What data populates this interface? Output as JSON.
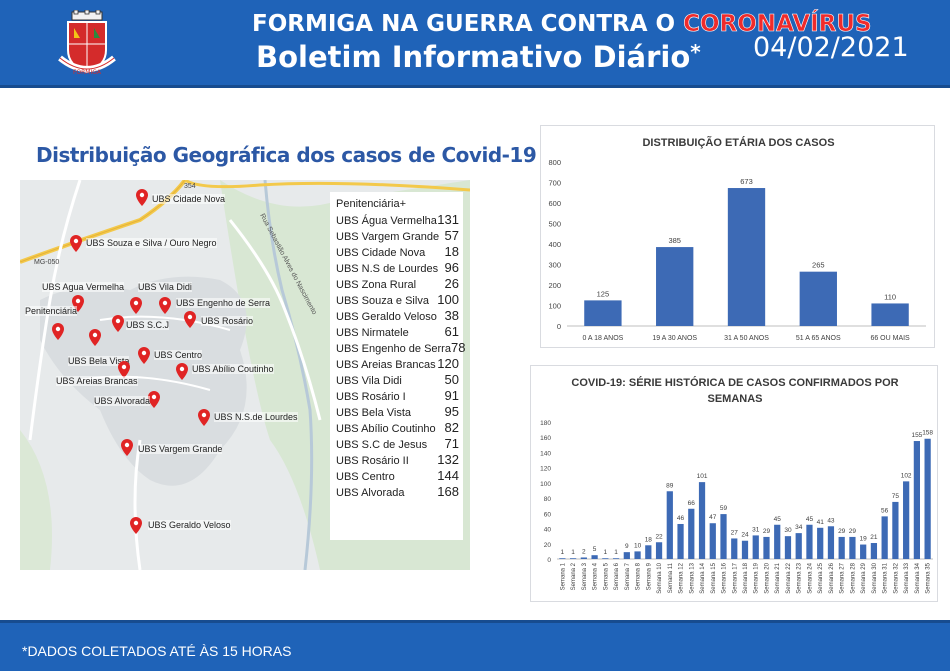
{
  "header": {
    "title_prefix": "FORMIGA NA GUERRA CONTRA O ",
    "title_highlight": "CORONAVÍRUS",
    "subtitle": "Boletim Informativo Diário",
    "subtitle_mark": "*",
    "date": "04/02/2021",
    "crest_text": "FORMIGA"
  },
  "geo": {
    "title": "Distribuição Geográfica dos casos de Covid-19",
    "road_labels": [
      "MG-050",
      "354",
      "Rua Sebastião Alves do Nascimento"
    ],
    "markers": [
      {
        "label": "UBS Cidade Nova"
      },
      {
        "label": "UBS Souza e Silva / Ouro Negro"
      },
      {
        "label": "UBS Agua Vermelha"
      },
      {
        "label": "UBS Vila Didi"
      },
      {
        "label": "UBS Engenho de Serra"
      },
      {
        "label": "Penitenciária"
      },
      {
        "label": "UBS S.C.J"
      },
      {
        "label": "UBS Rosário"
      },
      {
        "label": "UBS Centro"
      },
      {
        "label": "UBS Bela Vista"
      },
      {
        "label": "UBS Abílio Coutinho"
      },
      {
        "label": "UBS Areias Brancas"
      },
      {
        "label": "UBS Alvorada"
      },
      {
        "label": "UBS N.S.de Lourdes"
      },
      {
        "label": "UBS Vargem Grande"
      },
      {
        "label": "UBS Geraldo Veloso"
      }
    ],
    "list_header": "Penitenciária+",
    "list": [
      {
        "name": "UBS Água Vermelha",
        "value": "131"
      },
      {
        "name": "UBS Vargem Grande",
        "value": "57"
      },
      {
        "name": "UBS Cidade Nova",
        "value": "18"
      },
      {
        "name": "UBS N.S de Lourdes",
        "value": "96"
      },
      {
        "name": "UBS Zona Rural",
        "value": "26"
      },
      {
        "name": "UBS Souza e Silva",
        "value": "100"
      },
      {
        "name": "UBS Geraldo Veloso",
        "value": "38"
      },
      {
        "name": "UBS Nirmatele",
        "value": "61"
      },
      {
        "name": "UBS Engenho de Serra",
        "value": "78"
      },
      {
        "name": "UBS Areias Brancas",
        "value": "120"
      },
      {
        "name": "UBS Vila Didi",
        "value": "50"
      },
      {
        "name": "UBS Rosário I",
        "value": "91"
      },
      {
        "name": "UBS Bela Vista",
        "value": "95"
      },
      {
        "name": "UBS Abílio Coutinho",
        "value": "82"
      },
      {
        "name": "UBS S.C de Jesus",
        "value": "71"
      },
      {
        "name": "UBS Rosário II",
        "value": "132"
      },
      {
        "name": "UBS Centro",
        "value": "144"
      },
      {
        "name": "UBS Alvorada",
        "value": "168"
      }
    ]
  },
  "colors": {
    "brand_blue": "#1f63b8",
    "bar_blue": "#3d6ab5",
    "marker_red": "#e02424",
    "title_blue": "#2c58a5"
  },
  "chart_data": [
    {
      "type": "bar",
      "title": "DISTRIBUIÇÃO ETÁRIA DOS CASOS",
      "categories": [
        "0 A 18 ANOS",
        "19 A 30 ANOS",
        "31 A 50 ANOS",
        "51 A 65 ANOS",
        "66 OU MAIS"
      ],
      "values": [
        125,
        385,
        673,
        265,
        110
      ],
      "ylim": [
        0,
        800
      ],
      "yticks": [
        0,
        100,
        200,
        300,
        400,
        500,
        600,
        700,
        800
      ],
      "grid": false,
      "xlabel": "",
      "ylabel": ""
    },
    {
      "type": "bar",
      "title_line1": "COVID-19: SÉRIE HISTÓRICA DE CASOS CONFIRMADOS POR",
      "title_line2": "SEMANAS",
      "categories": [
        "Semana 1",
        "Semana 2",
        "Semana 3",
        "Semana 4",
        "Semana 5",
        "Semana 6",
        "Semana 7",
        "Semana 8",
        "Semana 9",
        "Semana 10",
        "Semana 11",
        "Semana 12",
        "Semana 13",
        "Semana 14",
        "Semana 15",
        "Semana 16",
        "Semana 17",
        "Semana 18",
        "Semana 19",
        "Semana 20",
        "Semana 21",
        "Semana 22",
        "Semana 23",
        "Semana 24",
        "Semana 25",
        "Semana 26",
        "Semana 27",
        "Semana 28",
        "Semana 29",
        "Semana 30",
        "Semana 31",
        "Semana 32",
        "Semana 33",
        "Semana 34",
        "Semana 35"
      ],
      "values": [
        1,
        1,
        2,
        5,
        1,
        1,
        9,
        10,
        18,
        22,
        89,
        46,
        66,
        101,
        47,
        59,
        27,
        24,
        31,
        29,
        45,
        30,
        34,
        45,
        41,
        43,
        29,
        29,
        19,
        21,
        56,
        75,
        102,
        155,
        158
      ],
      "ylim": [
        0,
        180
      ],
      "yticks": [
        0,
        20,
        40,
        60,
        80,
        100,
        120,
        140,
        160,
        180
      ],
      "grid": false,
      "xlabel": "",
      "ylabel": ""
    }
  ],
  "footer": {
    "note": "*DADOS COLETADOS ATÉ ÀS 15 HORAS"
  }
}
